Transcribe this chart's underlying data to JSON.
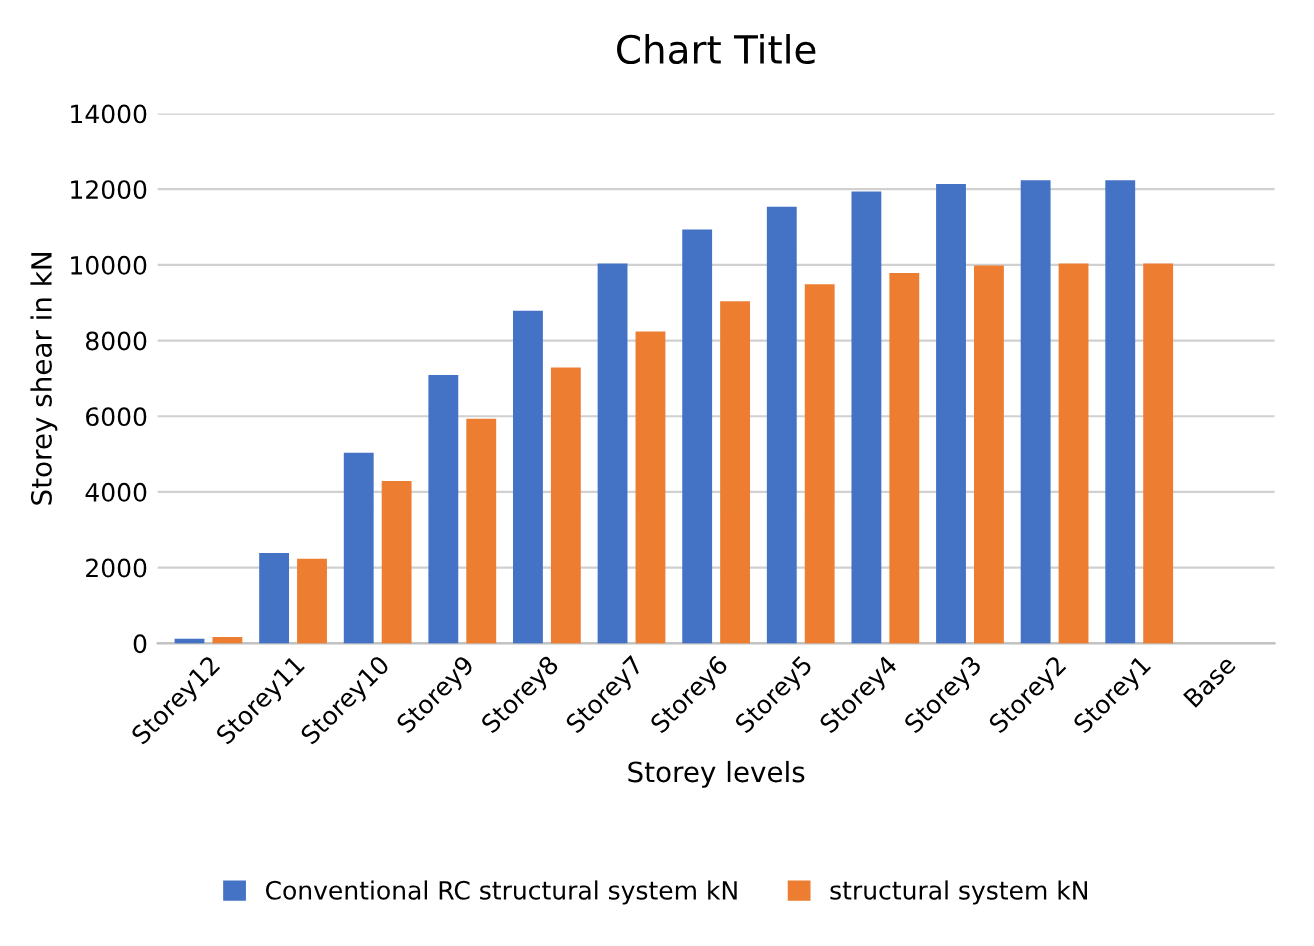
{
  "chart_data": {
    "type": "bar",
    "title": "Chart Title",
    "xlabel": "Storey levels",
    "ylabel": "Storey shear in kN",
    "categories": [
      "Storey12",
      "Storey11",
      "Storey10",
      "Storey9",
      "Storey8",
      "Storey7",
      "Storey6",
      "Storey5",
      "Storey4",
      "Storey3",
      "Storey2",
      "Storey1",
      "Base"
    ],
    "series": [
      {
        "name": "Conventional RC structural system kN",
        "color": "#4472c4",
        "values": [
          80,
          2350,
          5000,
          7050,
          8750,
          10000,
          10900,
          11500,
          11900,
          12100,
          12200,
          12200,
          null
        ]
      },
      {
        "name": "structural system kN",
        "color": "#ed7d31",
        "values": [
          130,
          2200,
          4250,
          5900,
          7250,
          8200,
          9000,
          9450,
          9750,
          9950,
          10000,
          10000,
          null
        ]
      }
    ],
    "ylim": [
      0,
      14000
    ],
    "yticks": [
      0,
      2000,
      4000,
      6000,
      8000,
      10000,
      12000,
      14000
    ],
    "grid": "y",
    "legend": "bottom"
  }
}
